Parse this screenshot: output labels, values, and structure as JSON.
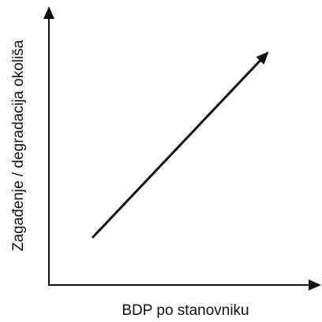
{
  "diagram": {
    "x_axis_label": "BDP po stanovniku",
    "y_axis_label": "Zagađenje / degradacija okoliša"
  }
}
